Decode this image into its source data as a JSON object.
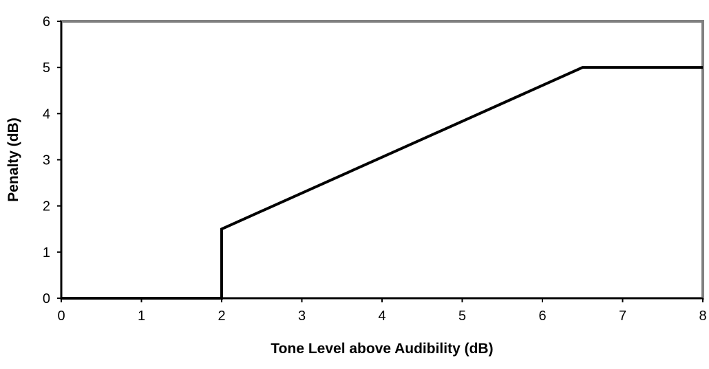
{
  "chart_data": {
    "type": "line",
    "title": "",
    "xlabel": "Tone Level above Audibility (dB)",
    "ylabel": "Penalty (dB)",
    "xlim": [
      0,
      8
    ],
    "ylim": [
      0,
      6
    ],
    "x_ticks": [
      "0",
      "1",
      "2",
      "3",
      "4",
      "5",
      "6",
      "7",
      "8"
    ],
    "y_ticks": [
      "0",
      "1",
      "2",
      "3",
      "4",
      "5",
      "6"
    ],
    "grid": false,
    "legend": "none",
    "series": [
      {
        "color": "#000000",
        "points": [
          {
            "x": 0,
            "y": 0
          },
          {
            "x": 2,
            "y": 0
          },
          {
            "x": 2,
            "y": 1.5
          },
          {
            "x": 6.5,
            "y": 5
          },
          {
            "x": 8,
            "y": 5
          }
        ]
      }
    ],
    "plot_border_color": "#808080",
    "axis_color": "#000000"
  }
}
